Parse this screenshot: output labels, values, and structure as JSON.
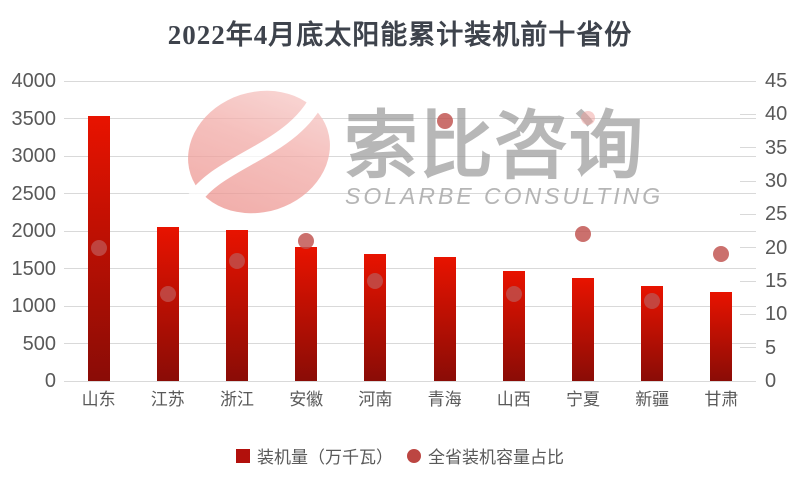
{
  "title": "2022年4月底太阳能累计装机前十省份",
  "watermark": {
    "cn": "索比咨询",
    "en": "SOLARBE CONSULTING"
  },
  "legend": {
    "bar_label": "装机量（万千瓦）",
    "scatter_label": "全省装机容量占比"
  },
  "chart_data": {
    "type": "bar",
    "subtype": "bar-with-scatter-combo",
    "title": "2022年4月底太阳能累计装机前十省份",
    "categories": [
      "山东",
      "江苏",
      "浙江",
      "安徽",
      "河南",
      "青海",
      "山西",
      "宁夏",
      "新疆",
      "甘肃"
    ],
    "series": [
      {
        "name": "装机量（万千瓦）",
        "type": "bar",
        "axis": "left",
        "values": [
          3540,
          2050,
          2010,
          1790,
          1700,
          1660,
          1470,
          1380,
          1270,
          1190
        ]
      },
      {
        "name": "全省装机容量占比",
        "type": "scatter",
        "axis": "right",
        "values": [
          20,
          13,
          18,
          21,
          15,
          39,
          13,
          22,
          12,
          19
        ]
      }
    ],
    "left_axis": {
      "min": 0,
      "max": 4000,
      "step": 500
    },
    "right_axis": {
      "min": 0,
      "max": 45,
      "step": 5
    },
    "grid": true,
    "legend_position": "bottom"
  },
  "colors": {
    "title_text": "#3e434c",
    "axis_text": "#595959",
    "grid": "#d9d9d9",
    "bar_top": "#e81300",
    "bar_bottom": "#8a0c06",
    "dot": "#c0504d",
    "legend_square": "#b2100c",
    "legend_circle": "#bc4642",
    "watermark_pink": "#f0a09c"
  }
}
